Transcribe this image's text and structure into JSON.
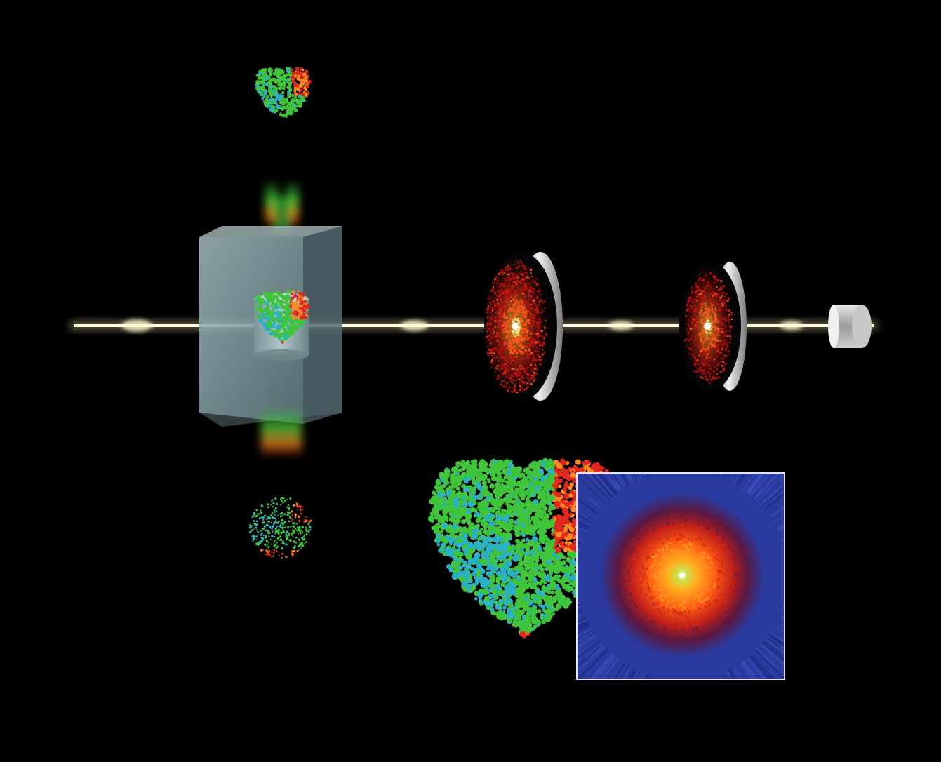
{
  "colors": {
    "background": "#000000",
    "beam": "#fffbe6",
    "beam_glow": "#e8e2a0",
    "chamber": "#9fb8bc",
    "detector_rim": "#d8d8d8",
    "pattern_hot": "#ffe880",
    "pattern_mid": "#ff5a1a",
    "pattern_cool": "#c01010",
    "inset_background": "#2a3a9e",
    "inset_border": "#dfe3ff",
    "molecule_green": "#3fc43a",
    "molecule_cyan": "#2ab0c8",
    "molecule_orange": "#ff8a1e",
    "molecule_red": "#e0281e"
  },
  "icons": {
    "source_molecule": "molecule-icon",
    "sample_chamber": "chamber-icon",
    "detector": "detector-disc-icon",
    "beam_stop": "beam-stop-icon"
  },
  "components": {
    "detectors": 2,
    "beam_stop": 1,
    "sample_chamber": 1
  }
}
